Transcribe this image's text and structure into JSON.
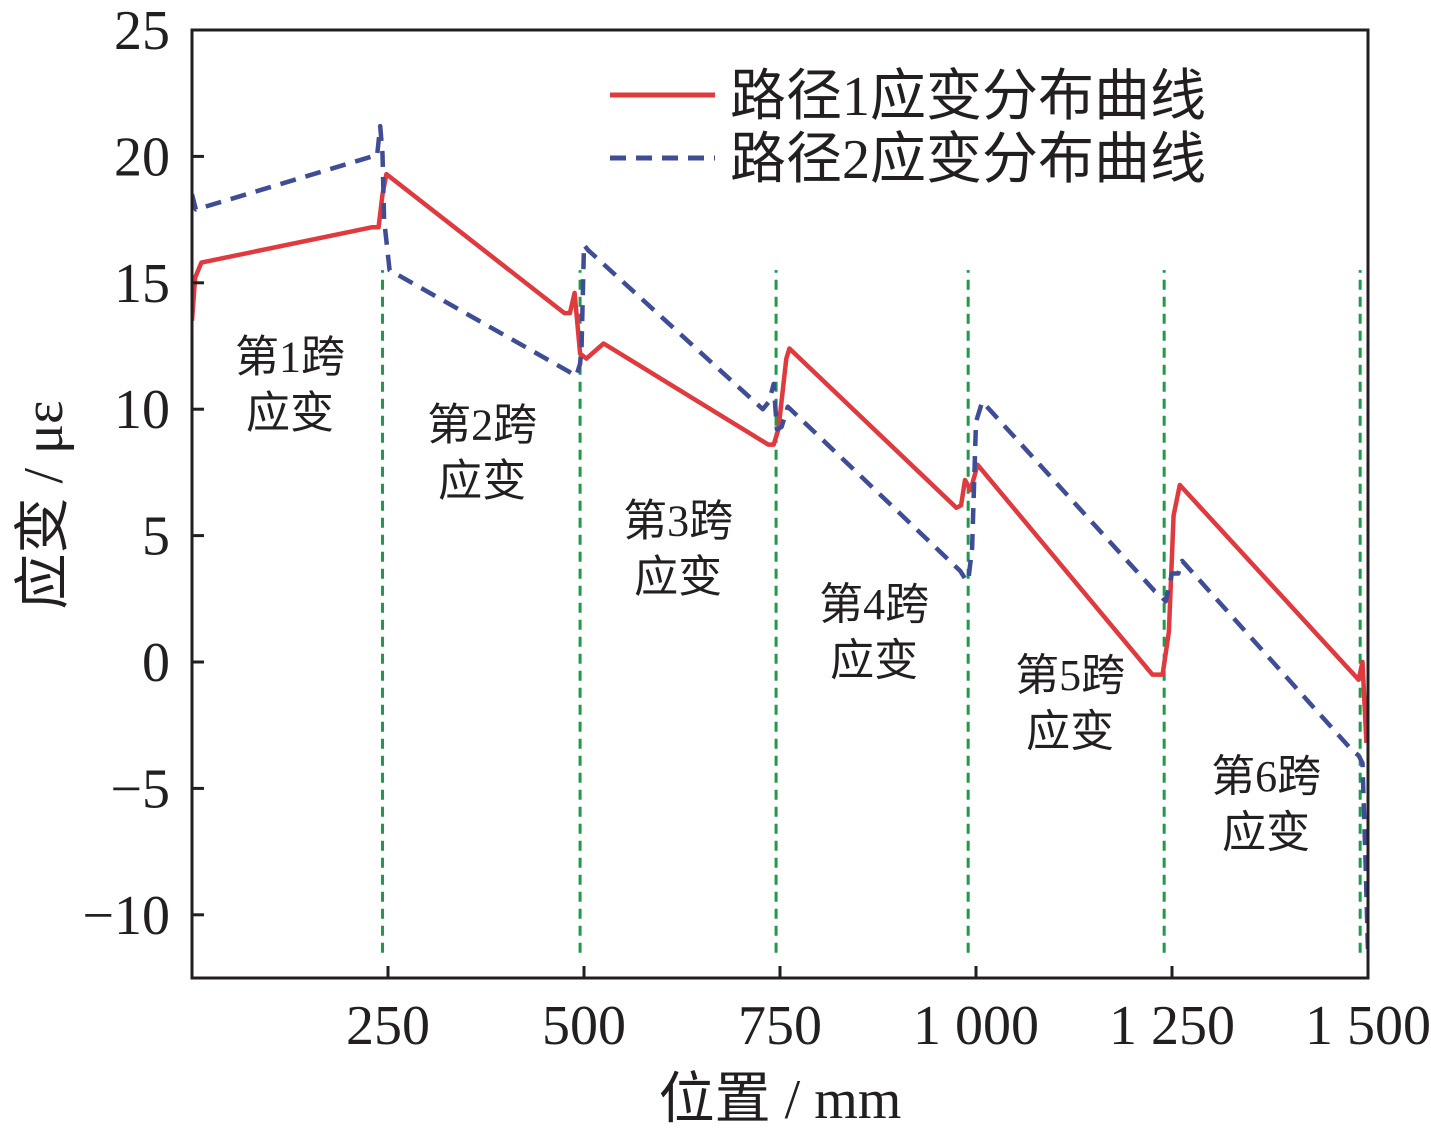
{
  "chart_data": {
    "type": "line",
    "xlabel": "位置 / mm",
    "ylabel": "应变 / με",
    "xlim": [
      0,
      1500
    ],
    "ylim": [
      -12.5,
      25
    ],
    "x_ticks": [
      250,
      500,
      750,
      1000,
      1250,
      1500
    ],
    "x_tick_labels": [
      "250",
      "500",
      "750",
      "1 000",
      "1 250",
      "1 500"
    ],
    "y_ticks": [
      -10,
      -5,
      0,
      5,
      10,
      15,
      20,
      25
    ],
    "y_tick_labels": [
      "−10",
      "−5",
      "0",
      "5",
      "10",
      "15",
      "20",
      "25"
    ],
    "grid": false,
    "legend_position": "top-right",
    "span_boundaries": [
      243,
      495,
      745,
      990,
      1240,
      1490
    ],
    "span_labels": [
      {
        "line1": "第1跨",
        "line2": "应变",
        "x": 125,
        "y": 11.5
      },
      {
        "line1": "第2跨",
        "line2": "应变",
        "x": 370,
        "y": 8.8
      },
      {
        "line1": "第3跨",
        "line2": "应变",
        "x": 620,
        "y": 5.0
      },
      {
        "line1": "第4跨",
        "line2": "应变",
        "x": 870,
        "y": 1.7
      },
      {
        "line1": "第5跨",
        "line2": "应变",
        "x": 1120,
        "y": -1.1
      },
      {
        "line1": "第6跨",
        "line2": "应变",
        "x": 1370,
        "y": -5.1
      }
    ],
    "series": [
      {
        "name": "路径1应变分布曲线",
        "color": "#e03a3e",
        "style": "solid",
        "x": [
          0,
          4,
          12,
          230,
          238,
          243,
          248,
          475,
          482,
          488,
          495,
          503,
          525,
          735,
          742,
          748,
          758,
          762,
          975,
          981,
          986,
          993,
          1002,
          1225,
          1238,
          1246,
          1252,
          1260,
          1488,
          1493,
          1498
        ],
        "y": [
          13.5,
          15.2,
          15.8,
          17.2,
          17.2,
          18.5,
          19.3,
          13.8,
          13.8,
          14.6,
          12.2,
          12.0,
          12.6,
          8.6,
          8.6,
          9.2,
          12.0,
          12.4,
          6.1,
          6.2,
          7.2,
          6.8,
          7.8,
          -0.5,
          -0.5,
          1.2,
          5.8,
          7.0,
          -0.7,
          0.0,
          -3.2
        ]
      },
      {
        "name": "路径2应变分布曲线",
        "color": "#3f4d96",
        "style": "dashed",
        "x": [
          0,
          5,
          230,
          236,
          240,
          243,
          245,
          252,
          480,
          490,
          495,
          497,
          500,
          505,
          728,
          736,
          742,
          746,
          752,
          760,
          980,
          986,
          990,
          995,
          1000,
          1008,
          1228,
          1236,
          1242,
          1250,
          1258,
          1263,
          1480,
          1488,
          1493,
          1497,
          1500
        ],
        "y": [
          18.5,
          17.9,
          20.0,
          20.0,
          21.2,
          20.1,
          17.5,
          15.5,
          11.5,
          11.3,
          11.8,
          12.5,
          16.5,
          16.3,
          10.0,
          10.3,
          11.0,
          9.2,
          9.3,
          10.1,
          3.6,
          3.3,
          3.2,
          4.5,
          9.5,
          10.3,
          2.8,
          2.6,
          2.4,
          3.5,
          3.5,
          4.0,
          -3.5,
          -3.7,
          -4.0,
          -8.0,
          -11.5
        ]
      }
    ]
  }
}
